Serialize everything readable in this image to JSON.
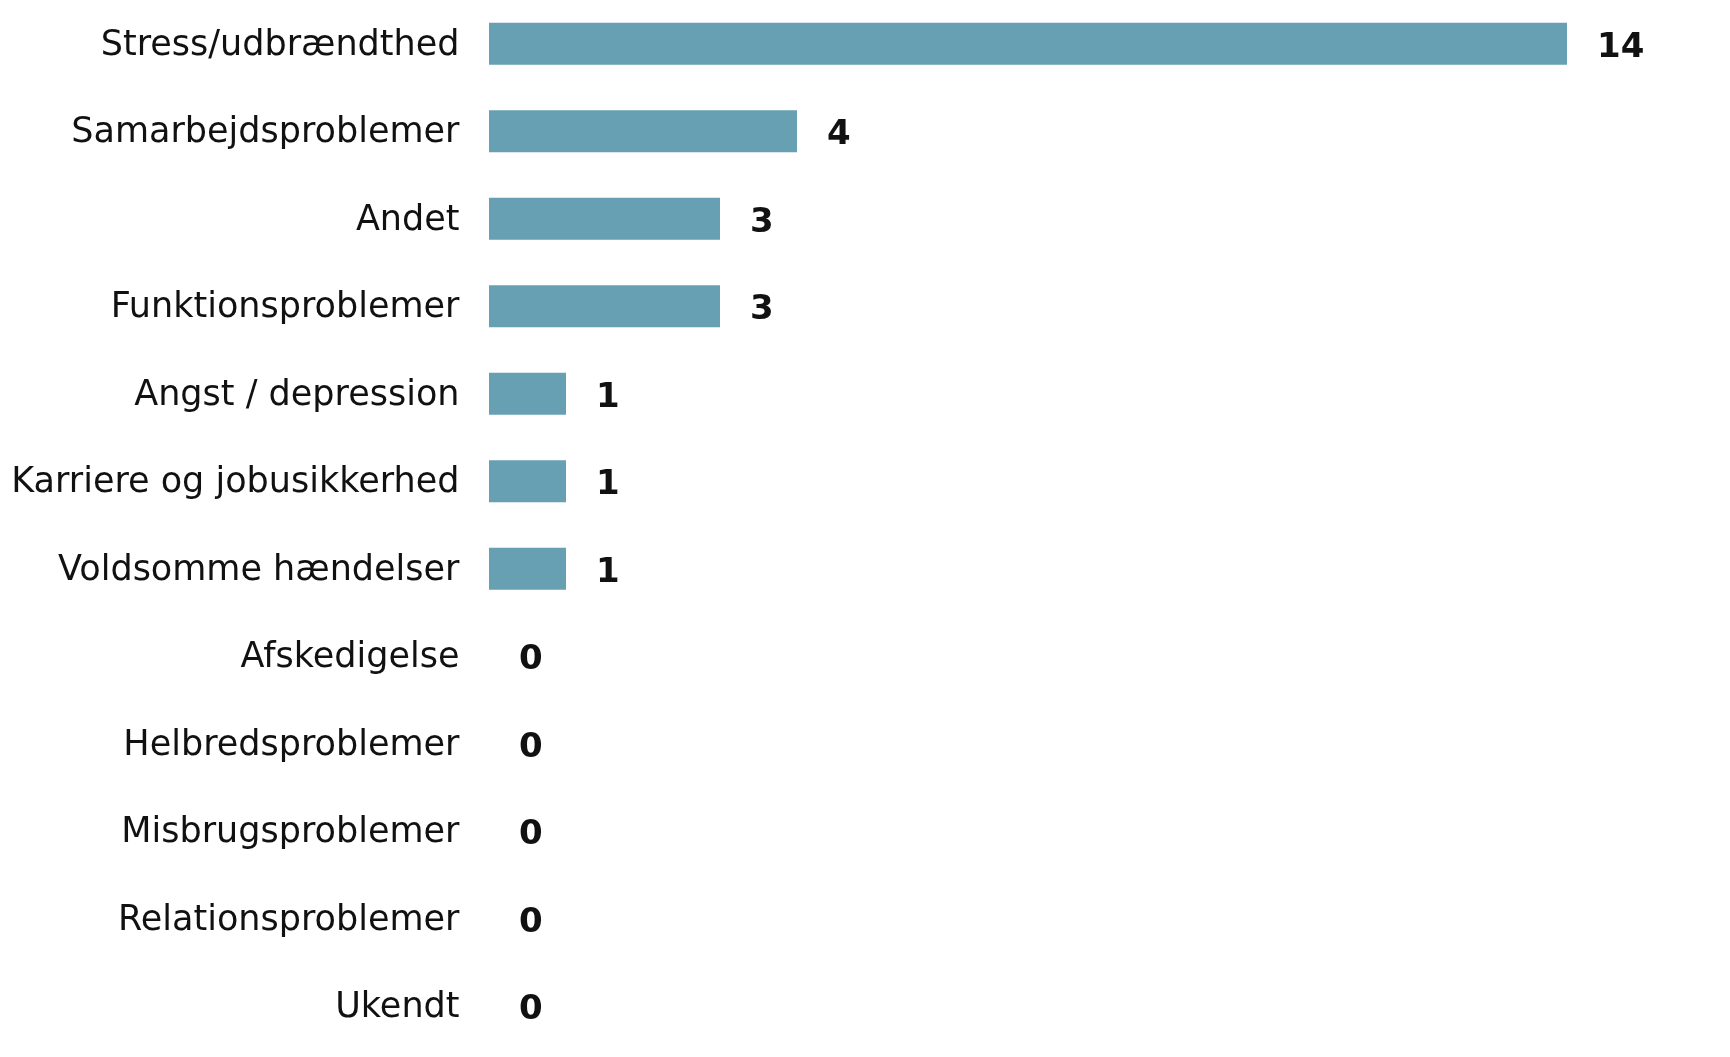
{
  "chart_data": {
    "type": "bar",
    "orientation": "horizontal",
    "categories": [
      "Stress/udbrændthed",
      "Samarbejdsproblemer",
      "Andet",
      "Funktionsproblemer",
      "Angst / depression",
      "Karriere og jobusikkerhed",
      "Voldsomme hændelser",
      "Afskedigelse",
      "Helbredsproblemer",
      "Misbrugsproblemer",
      "Relationsproblemer",
      "Ukendt"
    ],
    "values": [
      14,
      4,
      3,
      3,
      1,
      1,
      1,
      0,
      0,
      0,
      0,
      0
    ],
    "color": "#66a0b2",
    "data_labels": true
  }
}
